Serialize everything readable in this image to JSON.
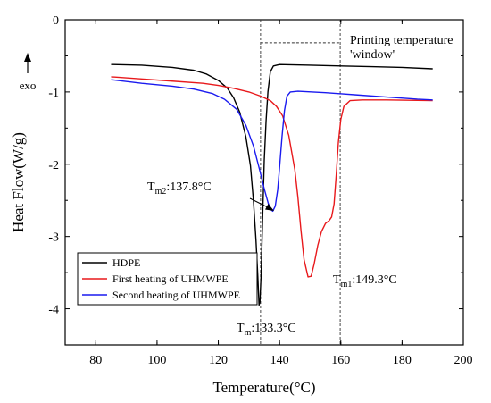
{
  "chart_data": {
    "type": "line",
    "title": "",
    "xlabel": "Temperature(°C)",
    "ylabel": "Heat Flow(W/g)",
    "xlim": [
      70,
      200
    ],
    "ylim": [
      -4.5,
      0
    ],
    "x_ticks": [
      80,
      100,
      120,
      140,
      160,
      180,
      200
    ],
    "y_ticks": [
      0,
      -1,
      -2,
      -3,
      -4
    ],
    "exo_label": "exo",
    "grid": false,
    "legend_position": "bottom-left",
    "series": [
      {
        "name": "HDPE",
        "color": "#000000",
        "points": [
          [
            85,
            -0.62
          ],
          [
            95,
            -0.63
          ],
          [
            105,
            -0.66
          ],
          [
            112,
            -0.7
          ],
          [
            116,
            -0.75
          ],
          [
            120,
            -0.84
          ],
          [
            123,
            -0.95
          ],
          [
            125,
            -1.08
          ],
          [
            127,
            -1.28
          ],
          [
            129,
            -1.62
          ],
          [
            130.5,
            -2.02
          ],
          [
            131.5,
            -2.52
          ],
          [
            132.3,
            -3.05
          ],
          [
            132.9,
            -3.55
          ],
          [
            133.3,
            -3.95
          ],
          [
            133.6,
            -3.9
          ],
          [
            134,
            -3.5
          ],
          [
            134.5,
            -2.7
          ],
          [
            135,
            -1.95
          ],
          [
            135.6,
            -1.4
          ],
          [
            136.2,
            -1.0
          ],
          [
            137,
            -0.72
          ],
          [
            138,
            -0.64
          ],
          [
            140,
            -0.62
          ],
          [
            150,
            -0.63
          ],
          [
            160,
            -0.64
          ],
          [
            170,
            -0.65
          ],
          [
            180,
            -0.66
          ],
          [
            190,
            -0.68
          ]
        ]
      },
      {
        "name": "First heating of UHMWPE",
        "color": "#e8191c",
        "points": [
          [
            85,
            -0.79
          ],
          [
            95,
            -0.82
          ],
          [
            105,
            -0.85
          ],
          [
            115,
            -0.88
          ],
          [
            120,
            -0.91
          ],
          [
            125,
            -0.95
          ],
          [
            130,
            -1.0
          ],
          [
            134,
            -1.06
          ],
          [
            137,
            -1.12
          ],
          [
            139,
            -1.2
          ],
          [
            141,
            -1.33
          ],
          [
            143,
            -1.6
          ],
          [
            145,
            -2.08
          ],
          [
            146,
            -2.46
          ],
          [
            147,
            -2.92
          ],
          [
            148,
            -3.32
          ],
          [
            149.3,
            -3.56
          ],
          [
            150.3,
            -3.55
          ],
          [
            151.3,
            -3.38
          ],
          [
            152.5,
            -3.12
          ],
          [
            153.7,
            -2.93
          ],
          [
            155,
            -2.82
          ],
          [
            156.2,
            -2.78
          ],
          [
            157,
            -2.73
          ],
          [
            157.8,
            -2.55
          ],
          [
            158.5,
            -2.15
          ],
          [
            159.2,
            -1.7
          ],
          [
            160,
            -1.38
          ],
          [
            161,
            -1.2
          ],
          [
            163,
            -1.12
          ],
          [
            167,
            -1.11
          ],
          [
            175,
            -1.11
          ],
          [
            190,
            -1.12
          ]
        ]
      },
      {
        "name": "Second heating of UHMWPE",
        "color": "#1a1aef",
        "points": [
          [
            85,
            -0.83
          ],
          [
            95,
            -0.88
          ],
          [
            105,
            -0.92
          ],
          [
            112,
            -0.96
          ],
          [
            118,
            -1.02
          ],
          [
            122,
            -1.1
          ],
          [
            126,
            -1.24
          ],
          [
            129,
            -1.46
          ],
          [
            131.5,
            -1.75
          ],
          [
            133.5,
            -2.08
          ],
          [
            135,
            -2.34
          ],
          [
            136.3,
            -2.54
          ],
          [
            137.2,
            -2.63
          ],
          [
            137.8,
            -2.65
          ],
          [
            138.6,
            -2.58
          ],
          [
            139.4,
            -2.35
          ],
          [
            140,
            -2.05
          ],
          [
            140.8,
            -1.62
          ],
          [
            141.6,
            -1.26
          ],
          [
            142.4,
            -1.06
          ],
          [
            143.5,
            -1.0
          ],
          [
            146,
            -0.99
          ],
          [
            155,
            -1.01
          ],
          [
            165,
            -1.04
          ],
          [
            175,
            -1.07
          ],
          [
            185,
            -1.1
          ],
          [
            190,
            -1.11
          ]
        ]
      }
    ],
    "reference_lines": [
      133.8,
      159.8
    ],
    "window_label_lines": [
      "Printing temperature",
      "'window'"
    ],
    "annotations": [
      {
        "main": "T",
        "sub": "m",
        "rest": ":133.3°C"
      },
      {
        "main": "T",
        "sub": "m2",
        "rest": ":137.8°C"
      },
      {
        "main": "T",
        "sub": "m1",
        "rest": ":149.3°C"
      }
    ]
  }
}
